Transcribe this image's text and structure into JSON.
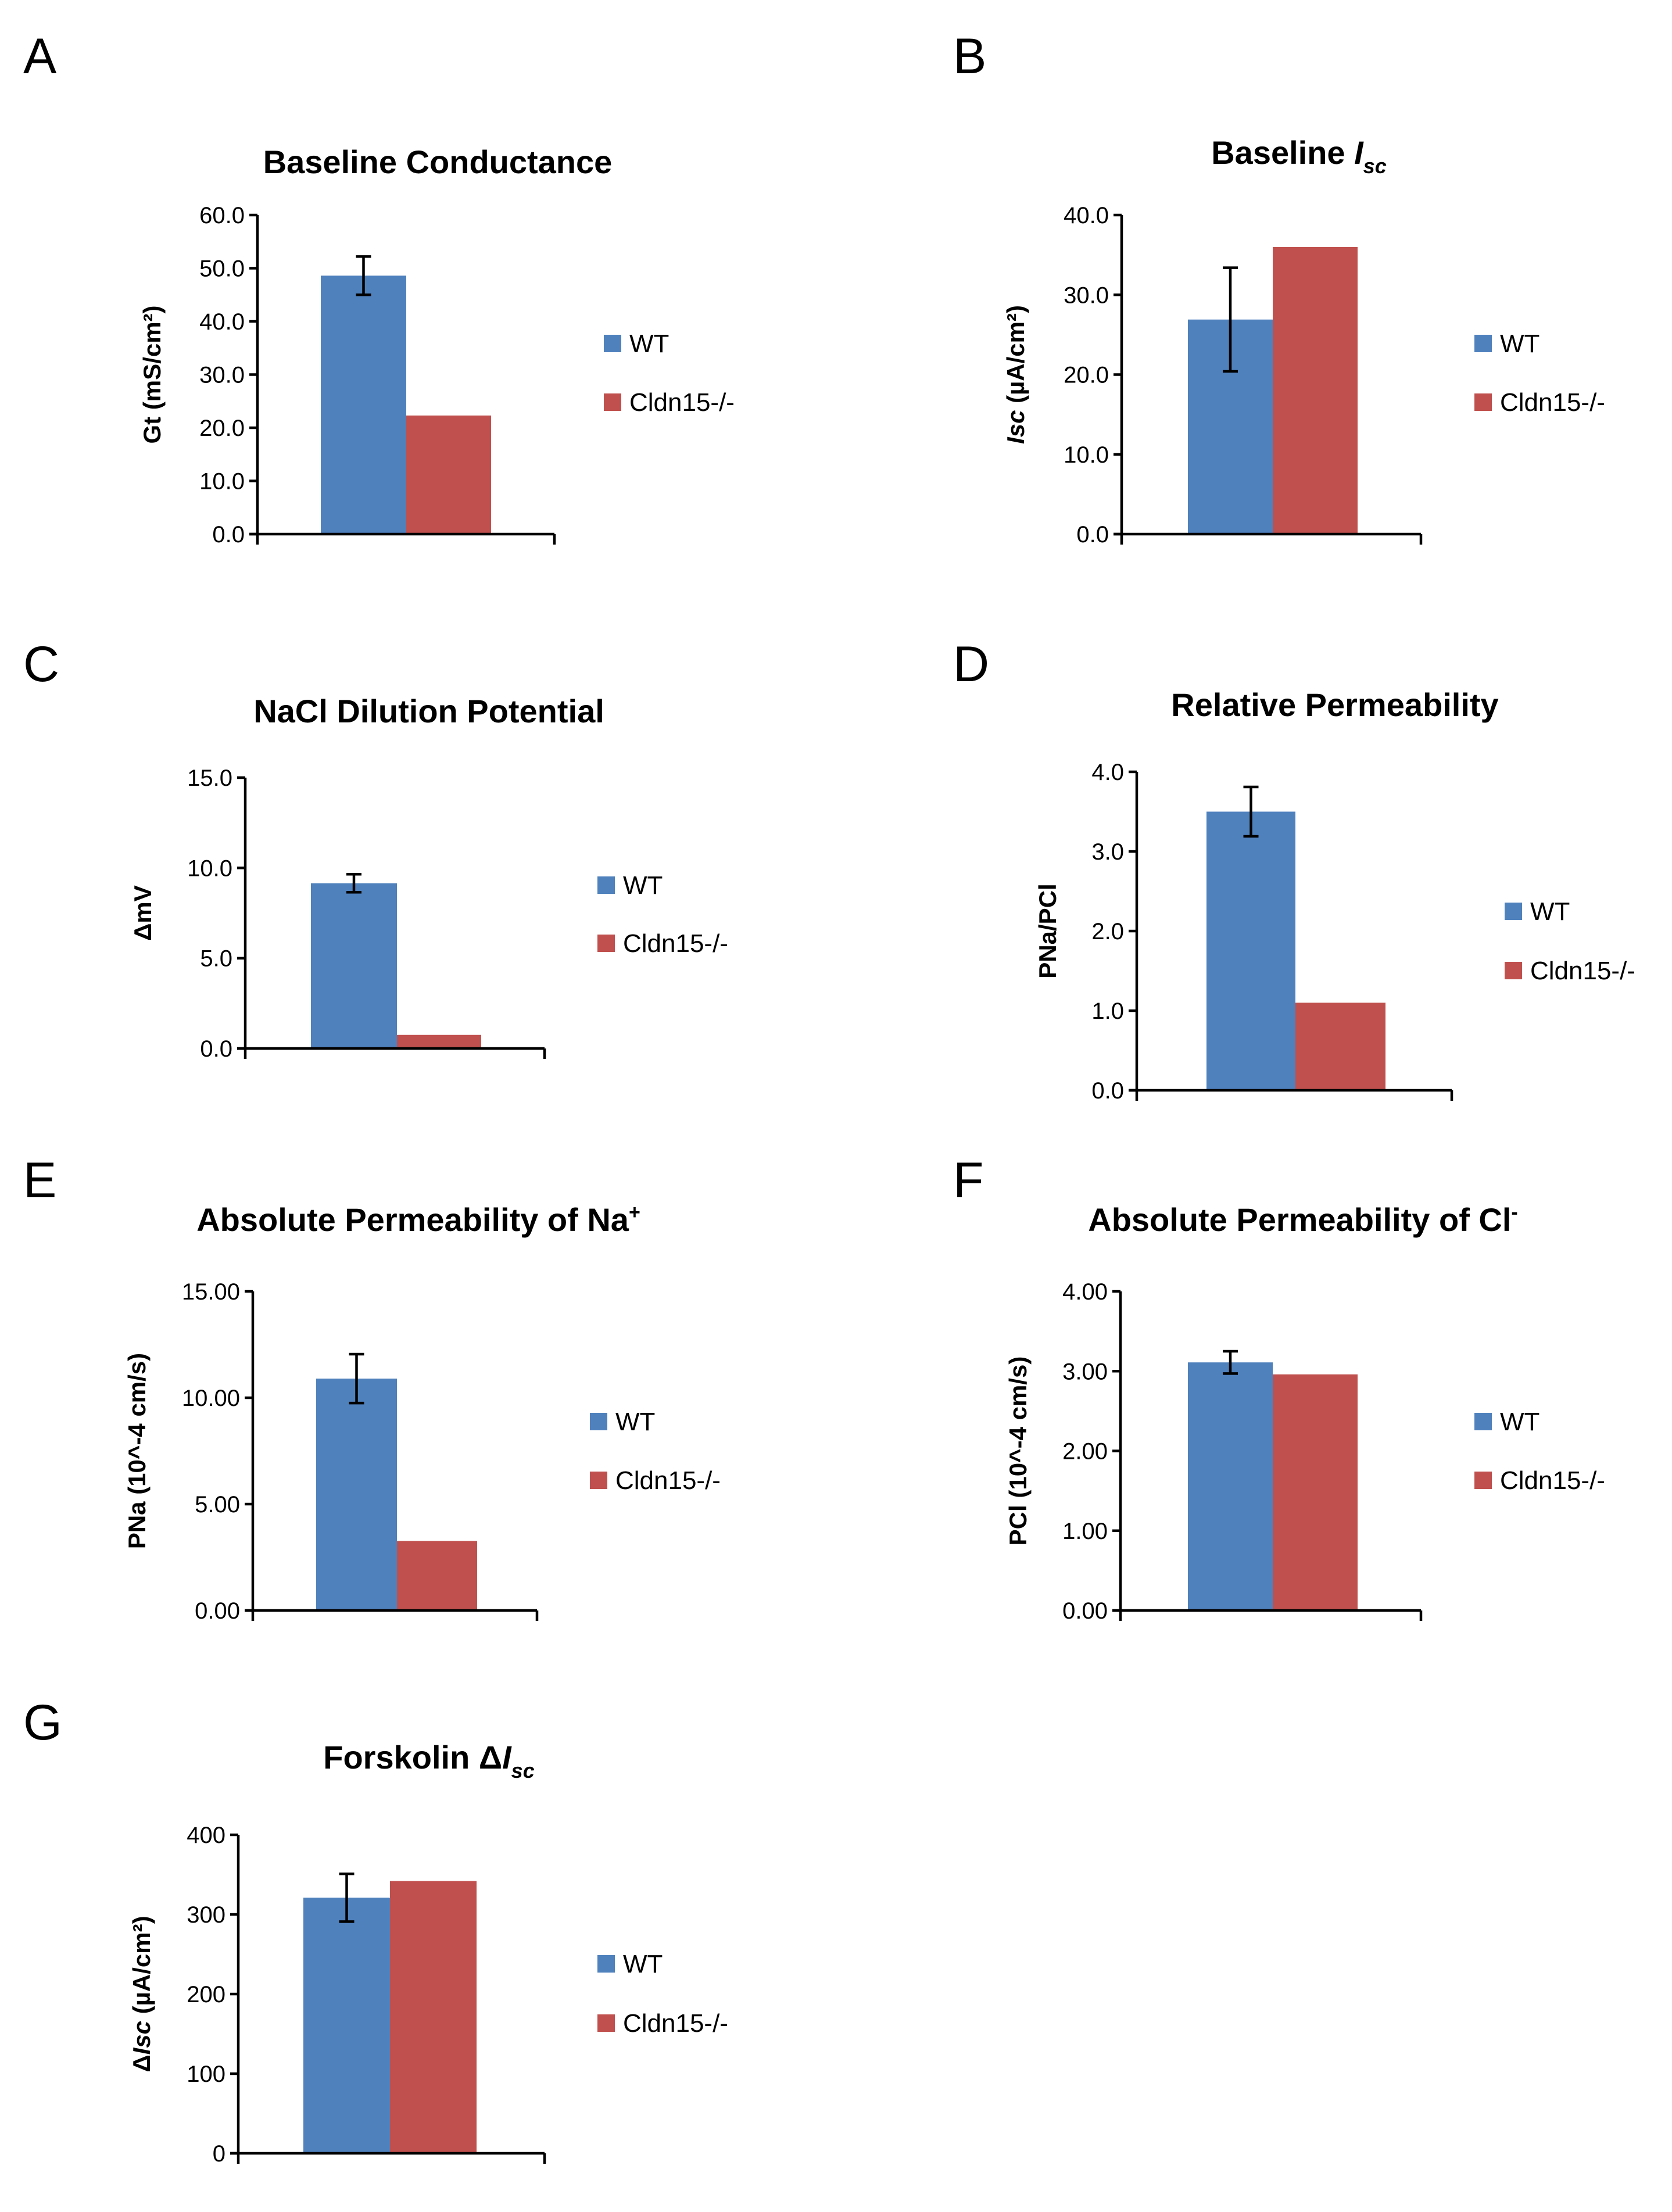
{
  "figure": {
    "series_colors": {
      "WT": "#4F81BD",
      "Cldn15-/-": "#C0504D"
    }
  },
  "chart_data": [
    {
      "panel": "A",
      "type": "bar",
      "title": "Baseline Conductance",
      "title_parts": [
        {
          "text": "Baseline Conductance",
          "style": "normal"
        }
      ],
      "ylabel": "Gt (mS/cm²)",
      "ylabel_parts": [
        {
          "text": "Gt (mS/cm²)",
          "style": "normal"
        }
      ],
      "xlabel": "",
      "categories": [
        ""
      ],
      "series": [
        {
          "name": "WT",
          "values": [
            48.6
          ],
          "error": [
            3.6
          ],
          "color": "#4F81BD"
        },
        {
          "name": "Cldn15-/-",
          "values": [
            22.3
          ],
          "error": [
            null
          ],
          "color": "#C0504D"
        }
      ],
      "ylim": [
        0,
        60
      ],
      "yticks": [
        0,
        10,
        20,
        30,
        40,
        50,
        60
      ],
      "ytick_labels": [
        "0.0",
        "10.0",
        "20.0",
        "30.0",
        "40.0",
        "50.0",
        "60.0"
      ],
      "legend": [
        "WT",
        "Cldn15-/-"
      ],
      "legend_position": "right",
      "grid": false
    },
    {
      "panel": "B",
      "type": "bar",
      "title": "Baseline Isc",
      "title_parts": [
        {
          "text": "Baseline ",
          "style": "normal"
        },
        {
          "text": "I",
          "style": "italic"
        },
        {
          "text": "sc",
          "style": "italic-sub"
        }
      ],
      "ylabel": "Isc (µA/cm²)",
      "ylabel_parts": [
        {
          "text": "Isc",
          "style": "italic"
        },
        {
          "text": " (µA/cm²)",
          "style": "normal"
        }
      ],
      "xlabel": "",
      "categories": [
        ""
      ],
      "series": [
        {
          "name": "WT",
          "values": [
            26.9
          ],
          "error": [
            6.5
          ],
          "color": "#4F81BD"
        },
        {
          "name": "Cldn15-/-",
          "values": [
            36.0
          ],
          "error": [
            null
          ],
          "color": "#C0504D"
        }
      ],
      "ylim": [
        0,
        40
      ],
      "yticks": [
        0,
        10,
        20,
        30,
        40
      ],
      "ytick_labels": [
        "0.0",
        "10.0",
        "20.0",
        "30.0",
        "40.0"
      ],
      "legend": [
        "WT",
        "Cldn15-/-"
      ],
      "legend_position": "right",
      "grid": false
    },
    {
      "panel": "C",
      "type": "bar",
      "title": "NaCl Dilution Potential",
      "title_parts": [
        {
          "text": "NaCl Dilution Potential",
          "style": "normal"
        }
      ],
      "ylabel": "ΔmV",
      "ylabel_parts": [
        {
          "text": "ΔmV",
          "style": "normal"
        }
      ],
      "xlabel": "",
      "categories": [
        ""
      ],
      "series": [
        {
          "name": "WT",
          "values": [
            9.15
          ],
          "error": [
            0.5
          ],
          "color": "#4F81BD"
        },
        {
          "name": "Cldn15-/-",
          "values": [
            0.75
          ],
          "error": [
            null
          ],
          "color": "#C0504D"
        }
      ],
      "ylim": [
        0,
        15
      ],
      "yticks": [
        0,
        5,
        10,
        15
      ],
      "ytick_labels": [
        "0.0",
        "5.0",
        "10.0",
        "15.0"
      ],
      "legend": [
        "WT",
        "Cldn15-/-"
      ],
      "legend_position": "right",
      "grid": false
    },
    {
      "panel": "D",
      "type": "bar",
      "title": "Relative Permeability",
      "title_parts": [
        {
          "text": "Relative Permeability",
          "style": "normal"
        }
      ],
      "ylabel": "PNa/PCl",
      "ylabel_parts": [
        {
          "text": "PNa/PCl",
          "style": "normal"
        }
      ],
      "xlabel": "",
      "categories": [
        ""
      ],
      "series": [
        {
          "name": "WT",
          "values": [
            3.5
          ],
          "error": [
            0.31
          ],
          "color": "#4F81BD"
        },
        {
          "name": "Cldn15-/-",
          "values": [
            1.1
          ],
          "error": [
            null
          ],
          "color": "#C0504D"
        }
      ],
      "ylim": [
        0,
        4
      ],
      "yticks": [
        0,
        1,
        2,
        3,
        4
      ],
      "ytick_labels": [
        "0.0",
        "1.0",
        "2.0",
        "3.0",
        "4.0"
      ],
      "legend": [
        "WT",
        "Cldn15-/-"
      ],
      "legend_position": "right",
      "grid": false
    },
    {
      "panel": "E",
      "type": "bar",
      "title": "Absolute Permeability of Na+",
      "title_parts": [
        {
          "text": "Absolute Permeability of Na",
          "style": "normal"
        },
        {
          "text": "+",
          "style": "sup"
        }
      ],
      "ylabel": "PNa (10^-4 cm/s)",
      "ylabel_parts": [
        {
          "text": "PNa (10^-4 cm/s)",
          "style": "normal"
        }
      ],
      "xlabel": "",
      "categories": [
        ""
      ],
      "series": [
        {
          "name": "WT",
          "values": [
            10.9
          ],
          "error": [
            1.15
          ],
          "color": "#4F81BD"
        },
        {
          "name": "Cldn15-/-",
          "values": [
            3.27
          ],
          "error": [
            null
          ],
          "color": "#C0504D"
        }
      ],
      "ylim": [
        0,
        15
      ],
      "yticks": [
        0,
        5,
        10,
        15
      ],
      "ytick_labels": [
        "0.00",
        "5.00",
        "10.00",
        "15.00"
      ],
      "legend": [
        "WT",
        "Cldn15-/-"
      ],
      "legend_position": "right",
      "grid": false
    },
    {
      "panel": "F",
      "type": "bar",
      "title": "Absolute Permeability of Cl-",
      "title_parts": [
        {
          "text": "Absolute Permeability of Cl",
          "style": "normal"
        },
        {
          "text": "-",
          "style": "sup"
        }
      ],
      "ylabel": "PCl (10^-4 cm/s)",
      "ylabel_parts": [
        {
          "text": "PCl (10^-4 cm/s)",
          "style": "normal"
        }
      ],
      "xlabel": "",
      "categories": [
        ""
      ],
      "series": [
        {
          "name": "WT",
          "values": [
            3.11
          ],
          "error": [
            0.14
          ],
          "color": "#4F81BD"
        },
        {
          "name": "Cldn15-/-",
          "values": [
            2.96
          ],
          "error": [
            null
          ],
          "color": "#C0504D"
        }
      ],
      "ylim": [
        0,
        4
      ],
      "yticks": [
        0,
        1,
        2,
        3,
        4
      ],
      "ytick_labels": [
        "0.00",
        "1.00",
        "2.00",
        "3.00",
        "4.00"
      ],
      "legend": [
        "WT",
        "Cldn15-/-"
      ],
      "legend_position": "right",
      "grid": false
    },
    {
      "panel": "G",
      "type": "bar",
      "title": "Forskolin ΔIsc",
      "title_parts": [
        {
          "text": "Forskolin Δ",
          "style": "normal"
        },
        {
          "text": "I",
          "style": "italic"
        },
        {
          "text": "sc",
          "style": "italic-sub"
        }
      ],
      "ylabel": "ΔIsc (µA/cm²)",
      "ylabel_parts": [
        {
          "text": "Δ",
          "style": "normal"
        },
        {
          "text": "Isc",
          "style": "italic"
        },
        {
          "text": " (µA/cm²)",
          "style": "normal"
        }
      ],
      "xlabel": "",
      "categories": [
        ""
      ],
      "series": [
        {
          "name": "WT",
          "values": [
            321
          ],
          "error": [
            30
          ],
          "color": "#4F81BD"
        },
        {
          "name": "Cldn15-/-",
          "values": [
            342
          ],
          "error": [
            null
          ],
          "color": "#C0504D"
        }
      ],
      "ylim": [
        0,
        400
      ],
      "yticks": [
        0,
        100,
        200,
        300,
        400
      ],
      "ytick_labels": [
        "0",
        "100",
        "200",
        "300",
        "400"
      ],
      "legend": [
        "WT",
        "Cldn15-/-"
      ],
      "legend_position": "right",
      "grid": false
    }
  ]
}
